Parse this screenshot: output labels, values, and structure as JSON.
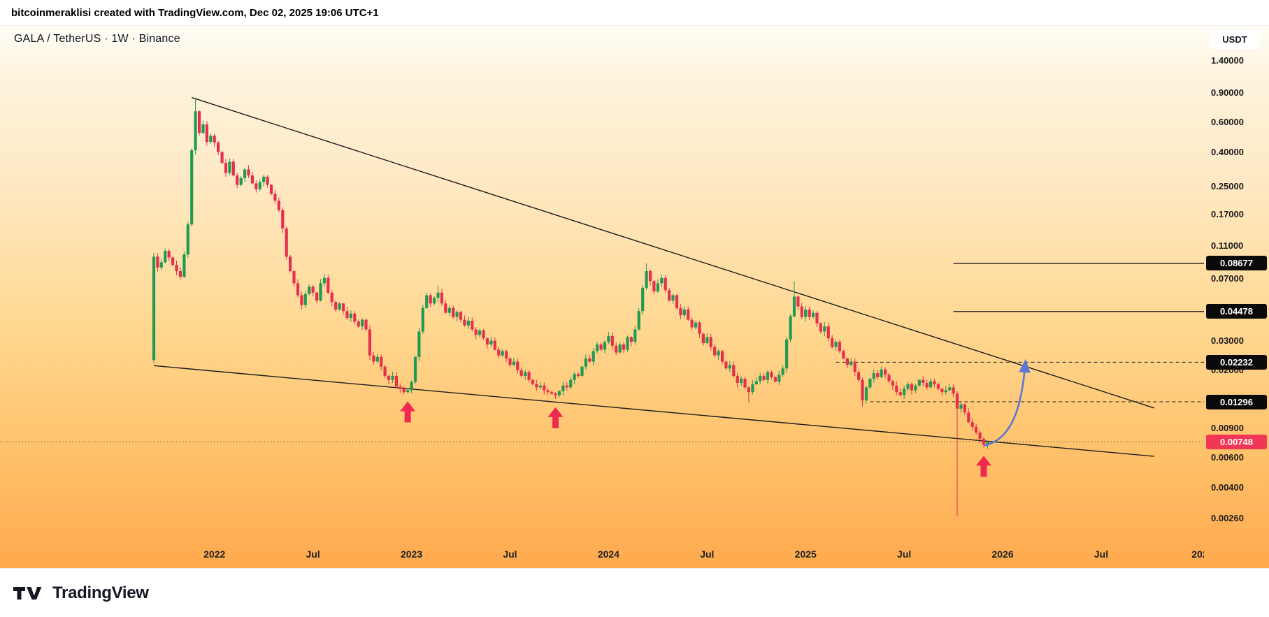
{
  "topbar": {
    "attribution": "bitcoinmeraklisi created with TradingView.com, Dec 02, 2025 19:06 UTC+1"
  },
  "chart_header": {
    "symbol": "GALA / TetherUS · 1W · Binance",
    "currency_button": "USDT"
  },
  "watermark": {
    "brand": "TradingView"
  },
  "colors": {
    "background_top": "#fffdf6",
    "background_bottom": "#ffa94e",
    "candle_up": "#219a52",
    "candle_down": "#e52f4f",
    "badge_black": "#0a0a0a",
    "badge_red": "#f23655",
    "arrow_red": "#ef2950",
    "arrow_blue": "#5b78d6",
    "line_black": "#1c1c1c"
  },
  "chart_data": {
    "type": "candlestick",
    "title": "GALA / TetherUS Weekly on Binance",
    "symbol": "GALA/USDT",
    "timeframe": "1W",
    "exchange": "Binance",
    "scale": "logarithmic",
    "current_price": 0.00748,
    "price_axis_labels": [
      {
        "label": "1.40000",
        "style": "plain"
      },
      {
        "label": "0.90000",
        "style": "plain"
      },
      {
        "label": "0.60000",
        "style": "plain"
      },
      {
        "label": "0.40000",
        "style": "plain"
      },
      {
        "label": "0.25000",
        "style": "plain"
      },
      {
        "label": "0.17000",
        "style": "plain"
      },
      {
        "label": "0.11000",
        "style": "plain"
      },
      {
        "label": "0.08677",
        "style": "black-badge"
      },
      {
        "label": "0.07000",
        "style": "plain"
      },
      {
        "label": "0.04478",
        "style": "black-badge"
      },
      {
        "label": "0.03000",
        "style": "plain"
      },
      {
        "label": "0.02232",
        "style": "black-badge"
      },
      {
        "label": "0.02000",
        "style": "plain"
      },
      {
        "label": "0.01296",
        "style": "black-badge"
      },
      {
        "label": "0.00900",
        "style": "plain"
      },
      {
        "label": "0.00748",
        "style": "red-badge"
      },
      {
        "label": "0.00600",
        "style": "plain"
      },
      {
        "label": "0.00400",
        "style": "plain"
      },
      {
        "label": "0.00260",
        "style": "plain"
      }
    ],
    "time_axis_labels": [
      {
        "label": "2022",
        "week": 16
      },
      {
        "label": "Jul",
        "week": 42
      },
      {
        "label": "2023",
        "week": 68
      },
      {
        "label": "Jul",
        "week": 94
      },
      {
        "label": "2024",
        "week": 120
      },
      {
        "label": "Jul",
        "week": 146
      },
      {
        "label": "2025",
        "week": 172
      },
      {
        "label": "Jul",
        "week": 198
      },
      {
        "label": "2026",
        "week": 224
      },
      {
        "label": "Jul",
        "week": 250
      },
      {
        "label": "202",
        "week": 276
      }
    ],
    "first_open": 0.023,
    "weekly_closes": [
      0.095,
      0.082,
      0.088,
      0.103,
      0.094,
      0.085,
      0.078,
      0.072,
      0.098,
      0.148,
      0.41,
      0.7,
      0.52,
      0.585,
      0.46,
      0.5,
      0.455,
      0.4,
      0.345,
      0.3,
      0.35,
      0.29,
      0.255,
      0.28,
      0.315,
      0.29,
      0.26,
      0.24,
      0.265,
      0.285,
      0.255,
      0.225,
      0.205,
      0.18,
      0.14,
      0.095,
      0.078,
      0.066,
      0.056,
      0.049,
      0.057,
      0.063,
      0.058,
      0.052,
      0.066,
      0.071,
      0.058,
      0.051,
      0.046,
      0.05,
      0.045,
      0.041,
      0.0435,
      0.039,
      0.0365,
      0.04,
      0.035,
      0.0245,
      0.0225,
      0.024,
      0.021,
      0.0185,
      0.0175,
      0.0185,
      0.016,
      0.0155,
      0.0148,
      0.0152,
      0.017,
      0.024,
      0.034,
      0.047,
      0.056,
      0.05,
      0.054,
      0.058,
      0.05,
      0.044,
      0.047,
      0.0415,
      0.0445,
      0.04,
      0.037,
      0.0395,
      0.035,
      0.0325,
      0.0345,
      0.031,
      0.0285,
      0.03,
      0.0265,
      0.0245,
      0.026,
      0.0235,
      0.0215,
      0.0225,
      0.02,
      0.0185,
      0.0195,
      0.0175,
      0.0165,
      0.0158,
      0.0162,
      0.0152,
      0.0148,
      0.0145,
      0.0142,
      0.015,
      0.0162,
      0.0158,
      0.0175,
      0.019,
      0.0185,
      0.021,
      0.0235,
      0.0225,
      0.026,
      0.0285,
      0.0265,
      0.0295,
      0.032,
      0.028,
      0.0255,
      0.0285,
      0.0265,
      0.0315,
      0.0295,
      0.035,
      0.045,
      0.062,
      0.078,
      0.068,
      0.059,
      0.066,
      0.071,
      0.06,
      0.052,
      0.056,
      0.047,
      0.0425,
      0.046,
      0.04,
      0.036,
      0.0385,
      0.033,
      0.029,
      0.0315,
      0.0275,
      0.0245,
      0.026,
      0.0225,
      0.0205,
      0.0215,
      0.0185,
      0.0168,
      0.0178,
      0.0158,
      0.0148,
      0.0165,
      0.0172,
      0.0185,
      0.0175,
      0.0195,
      0.0182,
      0.0171,
      0.0188,
      0.0205,
      0.0305,
      0.042,
      0.055,
      0.048,
      0.0415,
      0.046,
      0.0415,
      0.044,
      0.038,
      0.034,
      0.0365,
      0.031,
      0.0275,
      0.0295,
      0.026,
      0.0235,
      0.0215,
      0.0225,
      0.0195,
      0.0175,
      0.0132,
      0.0158,
      0.0178,
      0.0192,
      0.0182,
      0.0202,
      0.0188,
      0.0172,
      0.0162,
      0.0148,
      0.0142,
      0.0155,
      0.0165,
      0.0152,
      0.0162,
      0.0175,
      0.0168,
      0.0158,
      0.0172,
      0.0165,
      0.0155,
      0.0148,
      0.0152,
      0.0158,
      0.0145,
      0.0118,
      0.0125,
      0.0112,
      0.0098,
      0.0092,
      0.0085,
      0.0078,
      0.0072,
      0.00748
    ],
    "overrides": {
      "0": {
        "open": 0.023,
        "low": 0.022
      },
      "11": {
        "high": 0.845
      },
      "75": {
        "high": 0.064
      },
      "130": {
        "high": 0.0868
      },
      "157": {
        "low": 0.0128
      },
      "169": {
        "high": 0.068
      },
      "187": {
        "low": 0.0122
      },
      "212": {
        "low": 0.0027
      },
      "220": {
        "low": 0.0068
      }
    },
    "levels": [
      {
        "price": 0.08677,
        "from_week": 211,
        "style": "solid"
      },
      {
        "price": 0.04478,
        "from_week": 211,
        "style": "solid"
      },
      {
        "price": 0.02232,
        "from_week": 180,
        "style": "dashed"
      },
      {
        "price": 0.01296,
        "from_week": 189,
        "style": "dashed"
      },
      {
        "price": 0.00748,
        "from_week": -41,
        "style": "dotted"
      }
    ],
    "trendlines": [
      {
        "name": "upper",
        "from_week": 10,
        "from_price": 0.845,
        "to_week": 264,
        "to_price": 0.0119
      },
      {
        "name": "lower",
        "from_week": 0,
        "from_price": 0.0213,
        "to_week": 264,
        "to_price": 0.00613
      }
    ],
    "annotations": {
      "up_arrows": [
        {
          "week": 67
        },
        {
          "week": 106
        },
        {
          "week": 219
        }
      ],
      "projection_arrow": {
        "from_week": 219,
        "from_price": 0.0071,
        "to_week": 230,
        "to_price": 0.0225
      }
    }
  }
}
